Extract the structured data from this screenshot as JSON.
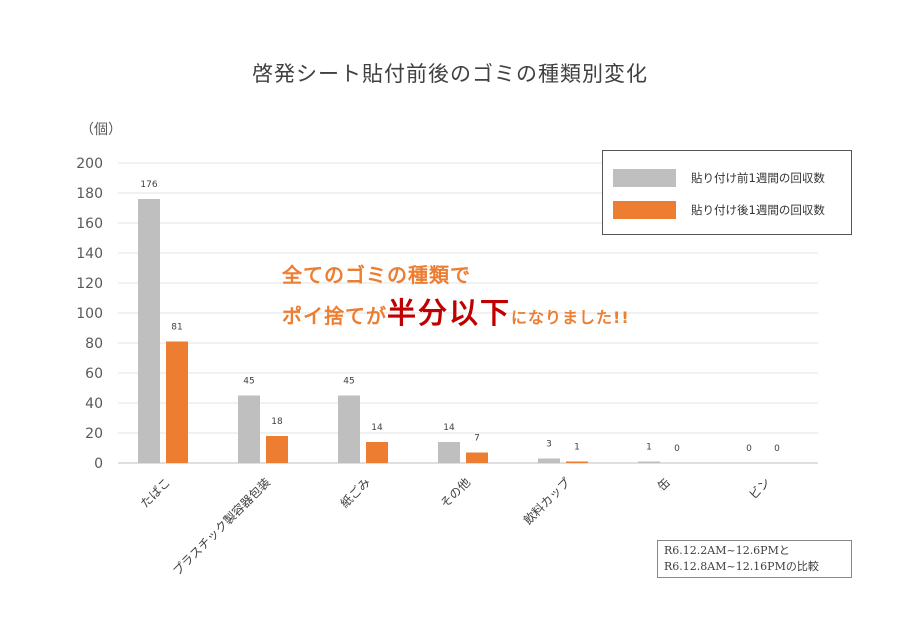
{
  "chart_data": {
    "type": "bar",
    "title": "啓発シート貼付前後のゴミの種類別変化",
    "ylabel": "（個）",
    "ylim": [
      0,
      200
    ],
    "yticks": [
      0,
      20,
      40,
      60,
      80,
      100,
      120,
      140,
      160,
      180,
      200
    ],
    "grid": true,
    "legend_position": "top-right",
    "categories": [
      "たばこ",
      "プラスチック製容器包装",
      "紙ごみ",
      "その他",
      "飲料カップ",
      "缶",
      "ビン"
    ],
    "series": [
      {
        "name": "貼り付け前1週間の回収数",
        "color": "#bfbfbf",
        "values": [
          176,
          45,
          45,
          14,
          3,
          1,
          0
        ]
      },
      {
        "name": "貼り付け後1週間の回収数",
        "color": "#ed7d31",
        "values": [
          81,
          18,
          14,
          7,
          1,
          0,
          0
        ]
      }
    ]
  },
  "annotation": {
    "line1": "全てのゴミの種類で",
    "line2_prefix": "ポイ捨てが",
    "line2_emphasis": "半分以下",
    "line2_suffix": "になりました!!",
    "color": "#ed7d31",
    "emphasis_color": "#c00000"
  },
  "note": {
    "line1": "R6.12.2AM~12.6PMと",
    "line2": "R6.12.8AM~12.16PMの比較"
  }
}
